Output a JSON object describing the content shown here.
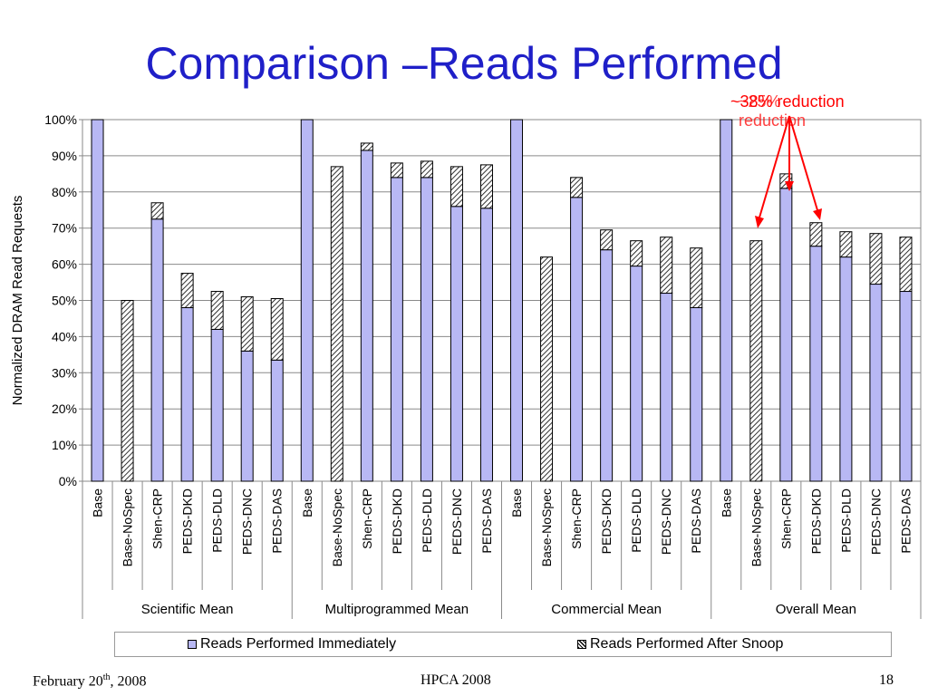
{
  "slide": {
    "title": "Comparison –Reads Performed",
    "footer_left": "February 20",
    "footer_left_sup": "th",
    "footer_left_tail": ", 2008",
    "footer_center": "HPCA 2008",
    "footer_right": "18",
    "annotation": "~38% reduction",
    "annotation_overlap": "~25% reduction"
  },
  "chart_data": {
    "type": "bar",
    "stacked": true,
    "ylabel": "Normalized DRAM Read Requests",
    "ylim": [
      0,
      100
    ],
    "y_ticks": [
      "0%",
      "10%",
      "20%",
      "30%",
      "40%",
      "50%",
      "60%",
      "70%",
      "80%",
      "90%",
      "100%"
    ],
    "grid": true,
    "groups": [
      "Scientific Mean",
      "Multiprogrammed Mean",
      "Commercial Mean",
      "Overall Mean"
    ],
    "categories": [
      "Base",
      "Base-NoSpec",
      "Shen-CRP",
      "PEDS-DKD",
      "PEDS-DLD",
      "PEDS-DNC",
      "PEDS-DAS"
    ],
    "series": [
      {
        "name": "Reads Performed Immediately",
        "color": "#b8b8f4",
        "values": [
          [
            100,
            0,
            72.5,
            48,
            42,
            36,
            33.5
          ],
          [
            100,
            0,
            91.5,
            84,
            84,
            76,
            75.5
          ],
          [
            100,
            0,
            78.5,
            64,
            59.5,
            52,
            48
          ],
          [
            100,
            0,
            81,
            65,
            62,
            54.5,
            52.5
          ]
        ]
      },
      {
        "name": "Reads Performed After Snoop",
        "pattern": "diagonal-hatch",
        "values": [
          [
            0,
            50,
            4.5,
            9.5,
            10.5,
            15,
            17
          ],
          [
            0,
            87,
            2,
            4,
            4.5,
            11,
            12
          ],
          [
            0,
            62,
            5.5,
            5.5,
            7,
            15.5,
            16.5
          ],
          [
            0,
            66.5,
            4,
            6.5,
            7,
            14,
            15
          ]
        ]
      }
    ],
    "legend_position": "bottom"
  }
}
